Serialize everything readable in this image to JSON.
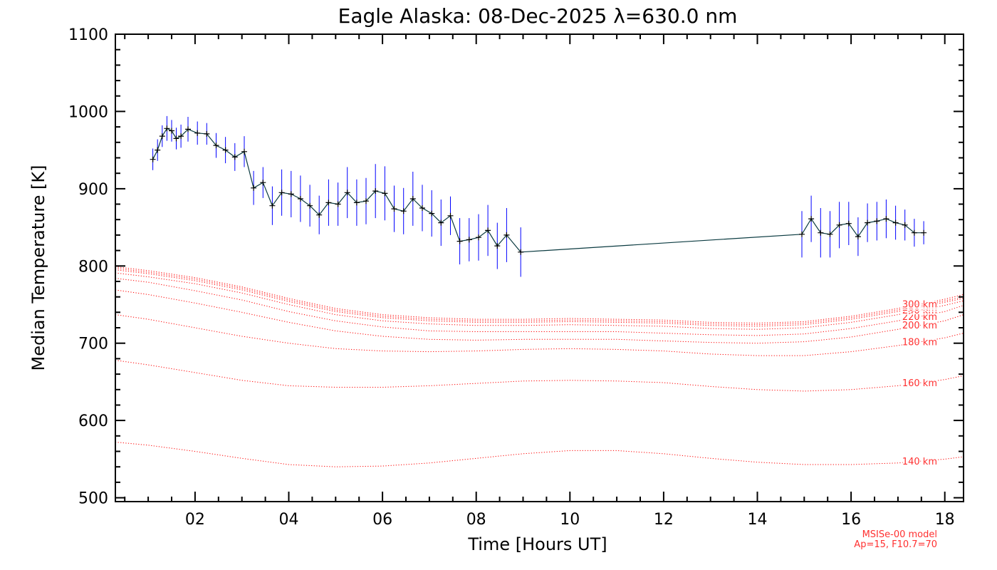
{
  "chart_data": {
    "type": "line",
    "title": "Eagle Alaska: 08-Dec-2025 λ=630.0 nm",
    "xlabel": "Time [Hours UT]",
    "ylabel": "Median Temperature [K]",
    "xlim": [
      0.3,
      18.4
    ],
    "ylim": [
      495,
      1100
    ],
    "x_ticks": [
      2,
      4,
      6,
      8,
      10,
      12,
      14,
      16,
      18
    ],
    "x_tick_labels": [
      "02",
      "04",
      "06",
      "08",
      "10",
      "12",
      "14",
      "16",
      "18"
    ],
    "y_ticks": [
      500,
      600,
      700,
      800,
      900,
      1000,
      1100
    ],
    "y_tick_labels": [
      "500",
      "600",
      "700",
      "800",
      "900",
      "1000",
      "1100"
    ],
    "grid": false,
    "colors": {
      "data_points": "#000000",
      "error_bars": "#0000ff",
      "connector": "#0a3a40",
      "model": "#ff0000"
    },
    "series": [
      {
        "name": "Median Temperature",
        "x": [
          1.1,
          1.2,
          1.3,
          1.4,
          1.5,
          1.6,
          1.7,
          1.85,
          2.05,
          2.25,
          2.45,
          2.65,
          2.85,
          3.05,
          3.25,
          3.45,
          3.65,
          3.85,
          4.05,
          4.25,
          4.45,
          4.65,
          4.85,
          5.05,
          5.25,
          5.45,
          5.65,
          5.85,
          6.05,
          6.25,
          6.45,
          6.65,
          6.85,
          7.05,
          7.25,
          7.45,
          7.65,
          7.85,
          8.05,
          8.25,
          8.45,
          8.65,
          8.95,
          14.95,
          15.15,
          15.35,
          15.55,
          15.75,
          15.95,
          16.15,
          16.35,
          16.55,
          16.75,
          16.95,
          17.15,
          17.35,
          17.55
        ],
        "y": [
          938,
          950,
          968,
          978,
          975,
          965,
          968,
          977,
          972,
          971,
          956,
          950,
          941,
          948,
          901,
          908,
          878,
          895,
          893,
          887,
          878,
          866,
          882,
          880,
          895,
          882,
          884,
          897,
          894,
          874,
          871,
          887,
          875,
          868,
          856,
          865,
          832,
          834,
          837,
          846,
          826,
          840,
          818,
          841,
          861,
          843,
          841,
          853,
          855,
          838,
          856,
          858,
          861,
          856,
          853,
          843,
          843
        ],
        "err": [
          14,
          14,
          14,
          16,
          14,
          14,
          15,
          16,
          15,
          14,
          16,
          17,
          18,
          20,
          22,
          20,
          25,
          30,
          30,
          30,
          27,
          25,
          30,
          28,
          33,
          30,
          30,
          35,
          35,
          30,
          30,
          35,
          30,
          30,
          30,
          25,
          30,
          28,
          30,
          33,
          30,
          35,
          32,
          30,
          30,
          32,
          30,
          30,
          28,
          25,
          25,
          25,
          25,
          22,
          20,
          18,
          15
        ]
      }
    ],
    "model": {
      "name": "MSISe-00 model",
      "params": "Ap=15, F10.7=70",
      "x": [
        0.3,
        1,
        2,
        3,
        4,
        5,
        6,
        7,
        8,
        9,
        10,
        11,
        12,
        13,
        14,
        15,
        16,
        17,
        18,
        18.4
      ],
      "curves": [
        {
          "label": "140 km",
          "y": [
            572,
            568,
            560,
            551,
            543,
            540,
            541,
            545,
            551,
            557,
            561,
            561,
            557,
            551,
            546,
            543,
            543,
            545,
            550,
            553
          ]
        },
        {
          "label": "160 km",
          "y": [
            678,
            672,
            662,
            652,
            645,
            643,
            643,
            645,
            648,
            651,
            652,
            651,
            649,
            644,
            640,
            638,
            640,
            645,
            653,
            658
          ]
        },
        {
          "label": "180 km",
          "y": [
            737,
            731,
            720,
            709,
            700,
            693,
            690,
            689,
            690,
            692,
            693,
            692,
            690,
            686,
            684,
            684,
            689,
            697,
            707,
            713
          ]
        },
        {
          "label": "200 km",
          "y": [
            769,
            763,
            752,
            740,
            727,
            716,
            709,
            705,
            704,
            705,
            705,
            705,
            703,
            701,
            700,
            702,
            708,
            718,
            729,
            737
          ]
        },
        {
          "label": "220 km",
          "y": [
            784,
            779,
            768,
            756,
            741,
            729,
            721,
            716,
            715,
            715,
            715,
            715,
            713,
            711,
            710,
            712,
            719,
            729,
            741,
            749
          ]
        },
        {
          "label": "240 km",
          "y": [
            791,
            786,
            777,
            765,
            750,
            737,
            729,
            725,
            723,
            723,
            724,
            723,
            722,
            719,
            718,
            720,
            727,
            737,
            749,
            755
          ]
        },
        {
          "label": "260 km",
          "y": [
            795,
            790,
            781,
            769,
            754,
            741,
            733,
            729,
            727,
            727,
            728,
            727,
            726,
            723,
            722,
            724,
            731,
            741,
            753,
            758
          ]
        },
        {
          "label": "280 km",
          "y": [
            797,
            792,
            783,
            771,
            756,
            743,
            735,
            731,
            729,
            729,
            730,
            729,
            728,
            725,
            724,
            726,
            733,
            743,
            755,
            760
          ]
        },
        {
          "label": "300 km",
          "y": [
            799,
            794,
            785,
            773,
            758,
            745,
            737,
            733,
            731,
            731,
            732,
            731,
            730,
            727,
            726,
            728,
            735,
            745,
            757,
            763
          ]
        }
      ]
    }
  }
}
